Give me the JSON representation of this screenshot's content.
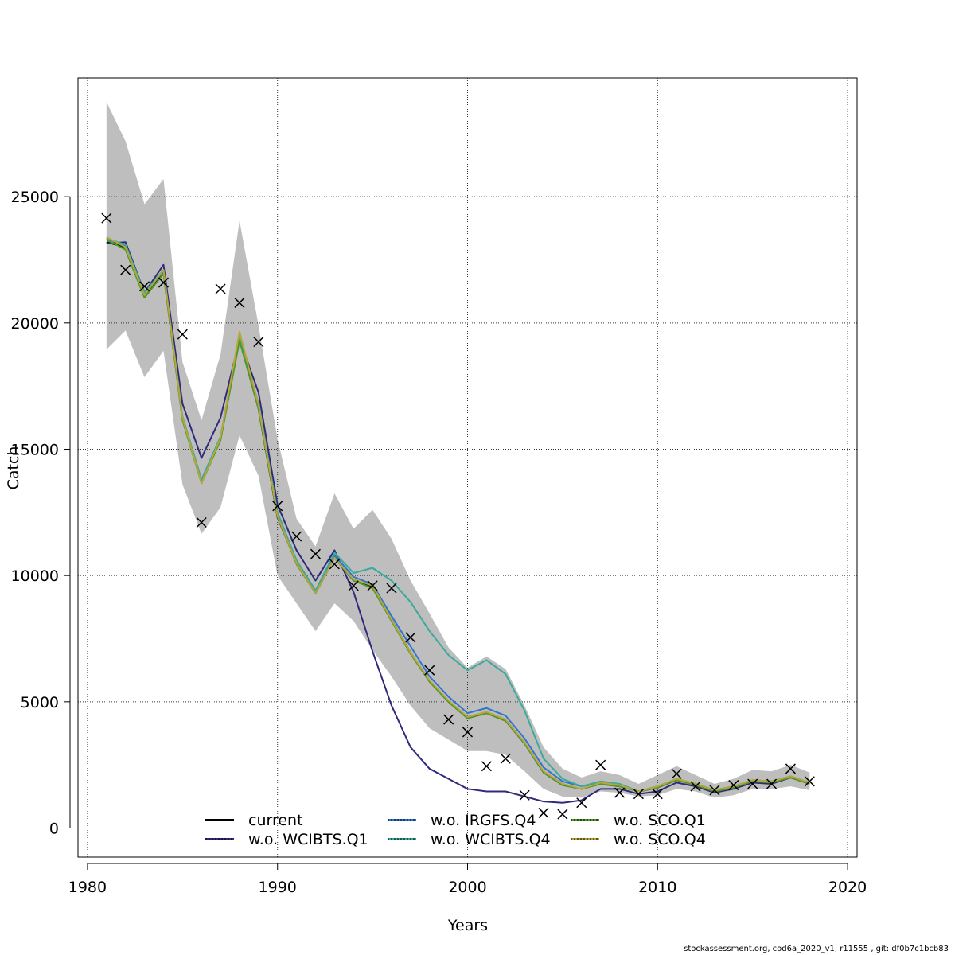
{
  "footer": "stockassessment.org, cod6a_2020_v1, r11555 , git: df0b7c1bcb83",
  "chart_data": {
    "type": "line",
    "title": "",
    "xlabel": "Years",
    "ylabel": "Catch",
    "xlim": [
      1979.5,
      2020.5
    ],
    "ylim": [
      -1150,
      29700
    ],
    "xticks": [
      1980,
      1990,
      2000,
      2010,
      2020
    ],
    "yticks": [
      0,
      5000,
      10000,
      15000,
      20000,
      25000
    ],
    "grid": true,
    "legend_position": "bottom",
    "x": [
      1981,
      1982,
      1983,
      1984,
      1985,
      1986,
      1987,
      1988,
      1989,
      1990,
      1991,
      1992,
      1993,
      1994,
      1995,
      1996,
      1997,
      1998,
      1999,
      2000,
      2001,
      2002,
      2003,
      2004,
      2005,
      2006,
      2007,
      2008,
      2009,
      2010,
      2011,
      2012,
      2013,
      2014,
      2015,
      2016,
      2017,
      2018
    ],
    "confidence_band": {
      "color": "#bebebe",
      "lower": [
        18950,
        19700,
        17850,
        18900,
        13600,
        11650,
        12700,
        15550,
        13950,
        10000,
        8900,
        7800,
        8900,
        8200,
        7050,
        6000,
        4850,
        3950,
        3500,
        3050,
        3050,
        2900,
        2250,
        1550,
        1250,
        1200,
        1450,
        1400,
        1250,
        1300,
        1550,
        1450,
        1200,
        1300,
        1550,
        1550,
        1650,
        1500
      ],
      "upper": [
        28750,
        27200,
        24700,
        25700,
        18450,
        16150,
        18750,
        24050,
        19900,
        15400,
        12250,
        11150,
        13250,
        11850,
        12600,
        11450,
        9800,
        8500,
        7150,
        6350,
        6800,
        6300,
        4850,
        3200,
        2350,
        2000,
        2250,
        2100,
        1750,
        2100,
        2450,
        2100,
        1750,
        1950,
        2300,
        2250,
        2500,
        2200
      ]
    },
    "series": [
      {
        "name": "current",
        "color": "#000000",
        "values": [
          23200,
          23000,
          21100,
          22000,
          16200,
          13700,
          15400,
          19400,
          16600,
          12300,
          10500,
          9300,
          10700,
          9800,
          9550,
          8250,
          6950,
          5800,
          5000,
          4350,
          4550,
          4250,
          3350,
          2200,
          1700,
          1550,
          1750,
          1650,
          1450,
          1600,
          1900,
          1750,
          1450,
          1600,
          1850,
          1800,
          2000,
          1750
        ]
      },
      {
        "name": "w.o. WCIBTS.Q1",
        "color": "#2f2a7b",
        "values": [
          23150,
          23200,
          21200,
          22300,
          16800,
          14650,
          16250,
          19350,
          17250,
          12800,
          11000,
          9800,
          11000,
          9350,
          7000,
          4850,
          3200,
          2350,
          1950,
          1550,
          1450,
          1450,
          1250,
          1050,
          1000,
          1100,
          1550,
          1550,
          1350,
          1450,
          1800,
          1650,
          1400,
          1550,
          1800,
          1750,
          2000,
          1800
        ]
      },
      {
        "name": "w.o. IRGFS.Q4",
        "color": "#2e75d4",
        "values": [
          23350,
          23050,
          21150,
          22050,
          16250,
          13750,
          15450,
          19450,
          16700,
          12400,
          10600,
          9400,
          10800,
          9950,
          9650,
          8400,
          7200,
          6000,
          5200,
          4550,
          4750,
          4450,
          3550,
          2400,
          1850,
          1650,
          1800,
          1700,
          1450,
          1650,
          1950,
          1750,
          1500,
          1650,
          1900,
          1850,
          2050,
          1800
        ]
      },
      {
        "name": "w.o. WCIBTS.Q4",
        "color": "#3aaa9b",
        "values": [
          23350,
          23100,
          21200,
          22100,
          16300,
          13800,
          15500,
          19500,
          16800,
          12500,
          10600,
          9400,
          10900,
          10100,
          10300,
          9800,
          8950,
          7800,
          6850,
          6250,
          6650,
          6100,
          4650,
          2750,
          1950,
          1650,
          1850,
          1750,
          1450,
          1650,
          1950,
          1750,
          1500,
          1650,
          1900,
          1850,
          2050,
          1800
        ]
      },
      {
        "name": "w.o. SCO.Q1",
        "color": "#4d9a24",
        "values": [
          23300,
          22900,
          21000,
          21950,
          16150,
          13650,
          15350,
          19300,
          16600,
          12350,
          10450,
          9300,
          10700,
          9800,
          9500,
          8200,
          6900,
          5800,
          5000,
          4350,
          4550,
          4250,
          3350,
          2200,
          1700,
          1550,
          1750,
          1650,
          1450,
          1600,
          1900,
          1700,
          1450,
          1600,
          1850,
          1800,
          2000,
          1750
        ]
      },
      {
        "name": "w.o. SCO.Q4",
        "color": "#b9a53a",
        "values": [
          23400,
          23000,
          21100,
          22100,
          16250,
          13650,
          15450,
          19650,
          16750,
          12350,
          10500,
          9300,
          10700,
          9850,
          9600,
          8250,
          6950,
          5850,
          5050,
          4400,
          4600,
          4300,
          3400,
          2250,
          1750,
          1550,
          1800,
          1700,
          1450,
          1650,
          1950,
          1750,
          1500,
          1650,
          1900,
          1850,
          2050,
          1800
        ]
      }
    ],
    "observed": {
      "marker": "x",
      "color": "#000000",
      "values": [
        24150,
        22100,
        21450,
        21600,
        19550,
        12100,
        21350,
        20800,
        19250,
        12750,
        11550,
        10850,
        10450,
        9600,
        9600,
        9500,
        7550,
        6250,
        4300,
        3800,
        2450,
        2750,
        1300,
        600,
        550,
        1000,
        2500,
        1400,
        1350,
        1350,
        2150,
        1650,
        1500,
        1700,
        1750,
        1750,
        2350,
        1850
      ]
    }
  }
}
